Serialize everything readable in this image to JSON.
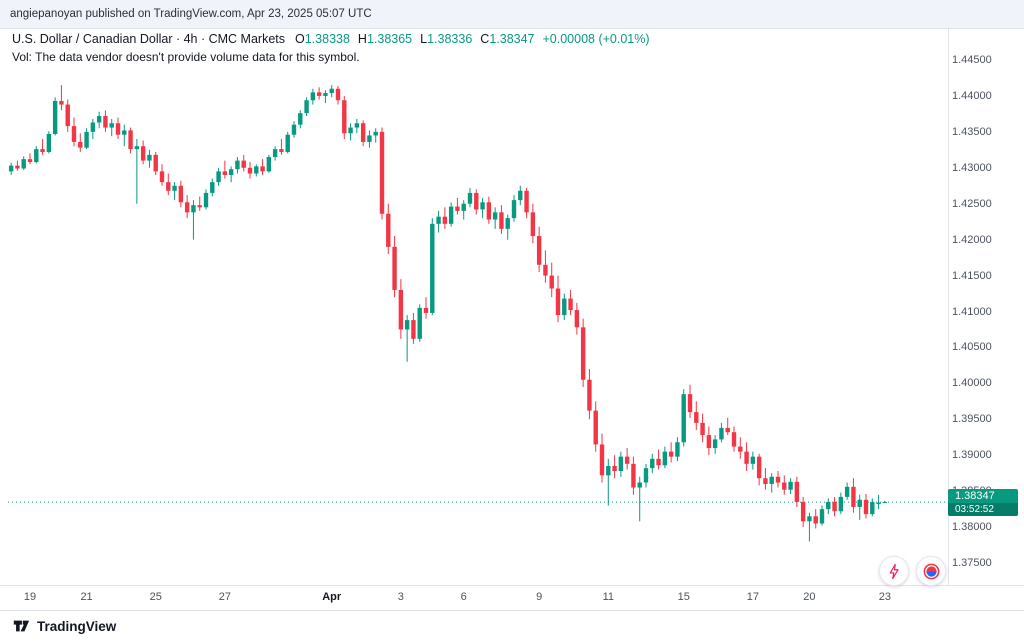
{
  "publish_bar": {
    "text": "angiepanoyan published on TradingView.com, Apr 23, 2025 05:07 UTC"
  },
  "header": {
    "symbol_line": "U.S. Dollar / Canadian Dollar · 4h · CMC Markets",
    "ohlc": {
      "open_label": "O",
      "open": "1.38338",
      "high_label": "H",
      "high": "1.38365",
      "low_label": "L",
      "low": "1.38336",
      "close_label": "C",
      "close": "1.38347",
      "change": "+0.00008 (+0.01%)"
    },
    "volume_note": "Vol: The data vendor doesn't provide volume data for this symbol."
  },
  "footer": {
    "brand": "TradingView"
  },
  "colors": {
    "up": "#089981",
    "down": "#F23645",
    "accent": "#089981"
  },
  "chart_data": {
    "type": "candlestick",
    "title": "U.S. Dollar / Canadian Dollar",
    "symbol": "USDCAD",
    "interval": "4h",
    "provider": "CMC Markets",
    "ylim": [
      1.375,
      1.445
    ],
    "grid": false,
    "legend_position": "none",
    "y_ticks": [
      "1.44500",
      "1.44000",
      "1.43500",
      "1.43000",
      "1.42500",
      "1.42000",
      "1.41500",
      "1.41000",
      "1.40500",
      "1.40000",
      "1.39500",
      "1.39000",
      "1.38500",
      "1.38000",
      "1.37500"
    ],
    "x_labels": [
      {
        "index": 3,
        "text": "19"
      },
      {
        "index": 12,
        "text": "21"
      },
      {
        "index": 23,
        "text": "25"
      },
      {
        "index": 34,
        "text": "27"
      },
      {
        "index": 51,
        "text": "Apr",
        "major": true
      },
      {
        "index": 62,
        "text": "3"
      },
      {
        "index": 72,
        "text": "6"
      },
      {
        "index": 84,
        "text": "9"
      },
      {
        "index": 95,
        "text": "11"
      },
      {
        "index": 107,
        "text": "15"
      },
      {
        "index": 118,
        "text": "17"
      },
      {
        "index": 127,
        "text": "20"
      },
      {
        "index": 139,
        "text": "23"
      }
    ],
    "last_price": 1.38347,
    "last_price_label": "1.38347",
    "countdown": "03:52:52",
    "up_color": "#089981",
    "down_color": "#F23645",
    "candles": [
      [
        1.4295,
        1.4307,
        1.429,
        1.4303
      ],
      [
        1.4303,
        1.431,
        1.4296,
        1.4299
      ],
      [
        1.4299,
        1.4316,
        1.4297,
        1.4312
      ],
      [
        1.4312,
        1.432,
        1.4305,
        1.4308
      ],
      [
        1.4308,
        1.433,
        1.4306,
        1.4326
      ],
      [
        1.4326,
        1.434,
        1.4318,
        1.4322
      ],
      [
        1.4322,
        1.4351,
        1.432,
        1.4347
      ],
      [
        1.4347,
        1.4398,
        1.4345,
        1.4393
      ],
      [
        1.4393,
        1.4415,
        1.438,
        1.4388
      ],
      [
        1.4388,
        1.4395,
        1.435,
        1.4358
      ],
      [
        1.4358,
        1.437,
        1.433,
        1.4336
      ],
      [
        1.4336,
        1.4348,
        1.4322,
        1.4328
      ],
      [
        1.4328,
        1.4355,
        1.4326,
        1.435
      ],
      [
        1.435,
        1.4368,
        1.434,
        1.4363
      ],
      [
        1.4363,
        1.4378,
        1.4355,
        1.4372
      ],
      [
        1.4372,
        1.438,
        1.435,
        1.4356
      ],
      [
        1.4356,
        1.4368,
        1.4344,
        1.4362
      ],
      [
        1.4362,
        1.437,
        1.434,
        1.4346
      ],
      [
        1.4346,
        1.436,
        1.433,
        1.4352
      ],
      [
        1.4352,
        1.4356,
        1.432,
        1.4326
      ],
      [
        1.4326,
        1.434,
        1.425,
        1.433
      ],
      [
        1.433,
        1.4338,
        1.4305,
        1.431
      ],
      [
        1.431,
        1.4325,
        1.43,
        1.4318
      ],
      [
        1.4318,
        1.4322,
        1.429,
        1.4295
      ],
      [
        1.4295,
        1.4305,
        1.4275,
        1.428
      ],
      [
        1.428,
        1.4292,
        1.4262,
        1.4268
      ],
      [
        1.4268,
        1.428,
        1.4255,
        1.4275
      ],
      [
        1.4275,
        1.4282,
        1.4245,
        1.4252
      ],
      [
        1.4252,
        1.4262,
        1.423,
        1.4238
      ],
      [
        1.4238,
        1.4255,
        1.42,
        1.4248
      ],
      [
        1.4248,
        1.426,
        1.424,
        1.4245
      ],
      [
        1.4245,
        1.427,
        1.4242,
        1.4265
      ],
      [
        1.4265,
        1.4285,
        1.426,
        1.428
      ],
      [
        1.428,
        1.43,
        1.4275,
        1.4295
      ],
      [
        1.4295,
        1.431,
        1.4285,
        1.429
      ],
      [
        1.429,
        1.4302,
        1.428,
        1.4298
      ],
      [
        1.4298,
        1.4315,
        1.4292,
        1.431
      ],
      [
        1.431,
        1.4318,
        1.4295,
        1.43
      ],
      [
        1.43,
        1.4308,
        1.4285,
        1.4292
      ],
      [
        1.4292,
        1.4305,
        1.4288,
        1.4302
      ],
      [
        1.4302,
        1.4312,
        1.429,
        1.4295
      ],
      [
        1.4295,
        1.4318,
        1.4293,
        1.4315
      ],
      [
        1.4315,
        1.433,
        1.431,
        1.4326
      ],
      [
        1.4326,
        1.434,
        1.4318,
        1.4322
      ],
      [
        1.4322,
        1.435,
        1.432,
        1.4346
      ],
      [
        1.4346,
        1.4365,
        1.4342,
        1.436
      ],
      [
        1.436,
        1.438,
        1.4355,
        1.4376
      ],
      [
        1.4376,
        1.4398,
        1.4372,
        1.4394
      ],
      [
        1.4394,
        1.441,
        1.4388,
        1.4405
      ],
      [
        1.4405,
        1.4412,
        1.4395,
        1.44
      ],
      [
        1.44,
        1.4408,
        1.439,
        1.4404
      ],
      [
        1.4404,
        1.4415,
        1.4398,
        1.441
      ],
      [
        1.441,
        1.4414,
        1.4388,
        1.4394
      ],
      [
        1.4394,
        1.44,
        1.434,
        1.4348
      ],
      [
        1.4348,
        1.4362,
        1.4338,
        1.4356
      ],
      [
        1.4356,
        1.4368,
        1.4348,
        1.4362
      ],
      [
        1.4362,
        1.4366,
        1.433,
        1.4336
      ],
      [
        1.4336,
        1.4352,
        1.4328,
        1.4345
      ],
      [
        1.4345,
        1.4355,
        1.4335,
        1.435
      ],
      [
        1.435,
        1.4356,
        1.4228,
        1.4236
      ],
      [
        1.4236,
        1.425,
        1.418,
        1.419
      ],
      [
        1.419,
        1.4205,
        1.412,
        1.413
      ],
      [
        1.413,
        1.4145,
        1.4062,
        1.4075
      ],
      [
        1.4075,
        1.4095,
        1.403,
        1.4088
      ],
      [
        1.4088,
        1.4098,
        1.4055,
        1.4062
      ],
      [
        1.4062,
        1.411,
        1.4058,
        1.4105
      ],
      [
        1.4105,
        1.412,
        1.409,
        1.4098
      ],
      [
        1.4098,
        1.423,
        1.4095,
        1.4222
      ],
      [
        1.4222,
        1.424,
        1.421,
        1.4232
      ],
      [
        1.4232,
        1.4245,
        1.4215,
        1.4222
      ],
      [
        1.4222,
        1.4252,
        1.4218,
        1.4246
      ],
      [
        1.4246,
        1.4258,
        1.4235,
        1.424
      ],
      [
        1.424,
        1.4255,
        1.4228,
        1.425
      ],
      [
        1.425,
        1.4272,
        1.4245,
        1.4265
      ],
      [
        1.4265,
        1.427,
        1.4235,
        1.4242
      ],
      [
        1.4242,
        1.4258,
        1.423,
        1.4252
      ],
      [
        1.4252,
        1.426,
        1.4222,
        1.4228
      ],
      [
        1.4228,
        1.4245,
        1.4215,
        1.4238
      ],
      [
        1.4238,
        1.4248,
        1.4208,
        1.4215
      ],
      [
        1.4215,
        1.4235,
        1.42,
        1.423
      ],
      [
        1.423,
        1.4262,
        1.4225,
        1.4255
      ],
      [
        1.4255,
        1.4275,
        1.4248,
        1.4268
      ],
      [
        1.4268,
        1.4272,
        1.423,
        1.4238
      ],
      [
        1.4238,
        1.425,
        1.4195,
        1.4205
      ],
      [
        1.4205,
        1.4218,
        1.4155,
        1.4165
      ],
      [
        1.4165,
        1.4185,
        1.414,
        1.415
      ],
      [
        1.415,
        1.4168,
        1.412,
        1.4132
      ],
      [
        1.4132,
        1.415,
        1.4085,
        1.4095
      ],
      [
        1.4095,
        1.4125,
        1.4088,
        1.4118
      ],
      [
        1.4118,
        1.413,
        1.4095,
        1.4102
      ],
      [
        1.4102,
        1.4112,
        1.4068,
        1.4078
      ],
      [
        1.4078,
        1.409,
        1.3995,
        1.4005
      ],
      [
        1.4005,
        1.402,
        1.395,
        1.3962
      ],
      [
        1.3962,
        1.3975,
        1.3905,
        1.3915
      ],
      [
        1.3915,
        1.393,
        1.3862,
        1.3872
      ],
      [
        1.3872,
        1.3895,
        1.383,
        1.3885
      ],
      [
        1.3885,
        1.39,
        1.3868,
        1.3878
      ],
      [
        1.3878,
        1.3905,
        1.387,
        1.3898
      ],
      [
        1.3898,
        1.391,
        1.388,
        1.3888
      ],
      [
        1.3888,
        1.3898,
        1.3845,
        1.3855
      ],
      [
        1.3855,
        1.387,
        1.3808,
        1.3862
      ],
      [
        1.3862,
        1.3888,
        1.3855,
        1.3882
      ],
      [
        1.3882,
        1.3902,
        1.3875,
        1.3895
      ],
      [
        1.3895,
        1.3908,
        1.388,
        1.3886
      ],
      [
        1.3886,
        1.3912,
        1.3882,
        1.3905
      ],
      [
        1.3905,
        1.3918,
        1.389,
        1.3898
      ],
      [
        1.3898,
        1.3925,
        1.3892,
        1.3918
      ],
      [
        1.3918,
        1.3992,
        1.3912,
        1.3985
      ],
      [
        1.3985,
        1.3998,
        1.3952,
        1.396
      ],
      [
        1.396,
        1.3975,
        1.3935,
        1.3945
      ],
      [
        1.3945,
        1.3958,
        1.3918,
        1.3928
      ],
      [
        1.3928,
        1.394,
        1.39,
        1.391
      ],
      [
        1.391,
        1.3928,
        1.3902,
        1.3922
      ],
      [
        1.3922,
        1.3945,
        1.3918,
        1.3938
      ],
      [
        1.3938,
        1.3952,
        1.3928,
        1.3932
      ],
      [
        1.3932,
        1.394,
        1.3905,
        1.3912
      ],
      [
        1.3912,
        1.3925,
        1.3895,
        1.3905
      ],
      [
        1.3905,
        1.3918,
        1.3878,
        1.3888
      ],
      [
        1.3888,
        1.3905,
        1.388,
        1.3898
      ],
      [
        1.3898,
        1.3902,
        1.3858,
        1.3868
      ],
      [
        1.3868,
        1.3882,
        1.3852,
        1.386
      ],
      [
        1.386,
        1.3875,
        1.3848,
        1.387
      ],
      [
        1.387,
        1.3878,
        1.3855,
        1.3862
      ],
      [
        1.3862,
        1.3872,
        1.3845,
        1.3852
      ],
      [
        1.3852,
        1.3868,
        1.3846,
        1.3863
      ],
      [
        1.3863,
        1.387,
        1.3828,
        1.3835
      ],
      [
        1.3835,
        1.3842,
        1.38,
        1.3808
      ],
      [
        1.3808,
        1.382,
        1.378,
        1.3815
      ],
      [
        1.3815,
        1.3825,
        1.3798,
        1.3805
      ],
      [
        1.3805,
        1.383,
        1.3802,
        1.3825
      ],
      [
        1.3825,
        1.384,
        1.3818,
        1.3835
      ],
      [
        1.3835,
        1.3842,
        1.3815,
        1.3822
      ],
      [
        1.3822,
        1.3848,
        1.3818,
        1.3842
      ],
      [
        1.3842,
        1.3862,
        1.3838,
        1.3856
      ],
      [
        1.3856,
        1.3868,
        1.382,
        1.3828
      ],
      [
        1.3828,
        1.3845,
        1.381,
        1.3838
      ],
      [
        1.3838,
        1.3846,
        1.3812,
        1.3818
      ],
      [
        1.3818,
        1.384,
        1.3815,
        1.3835
      ],
      [
        1.3832,
        1.3845,
        1.3825,
        1.3834
      ],
      [
        1.38338,
        1.38365,
        1.38336,
        1.38347
      ]
    ]
  }
}
